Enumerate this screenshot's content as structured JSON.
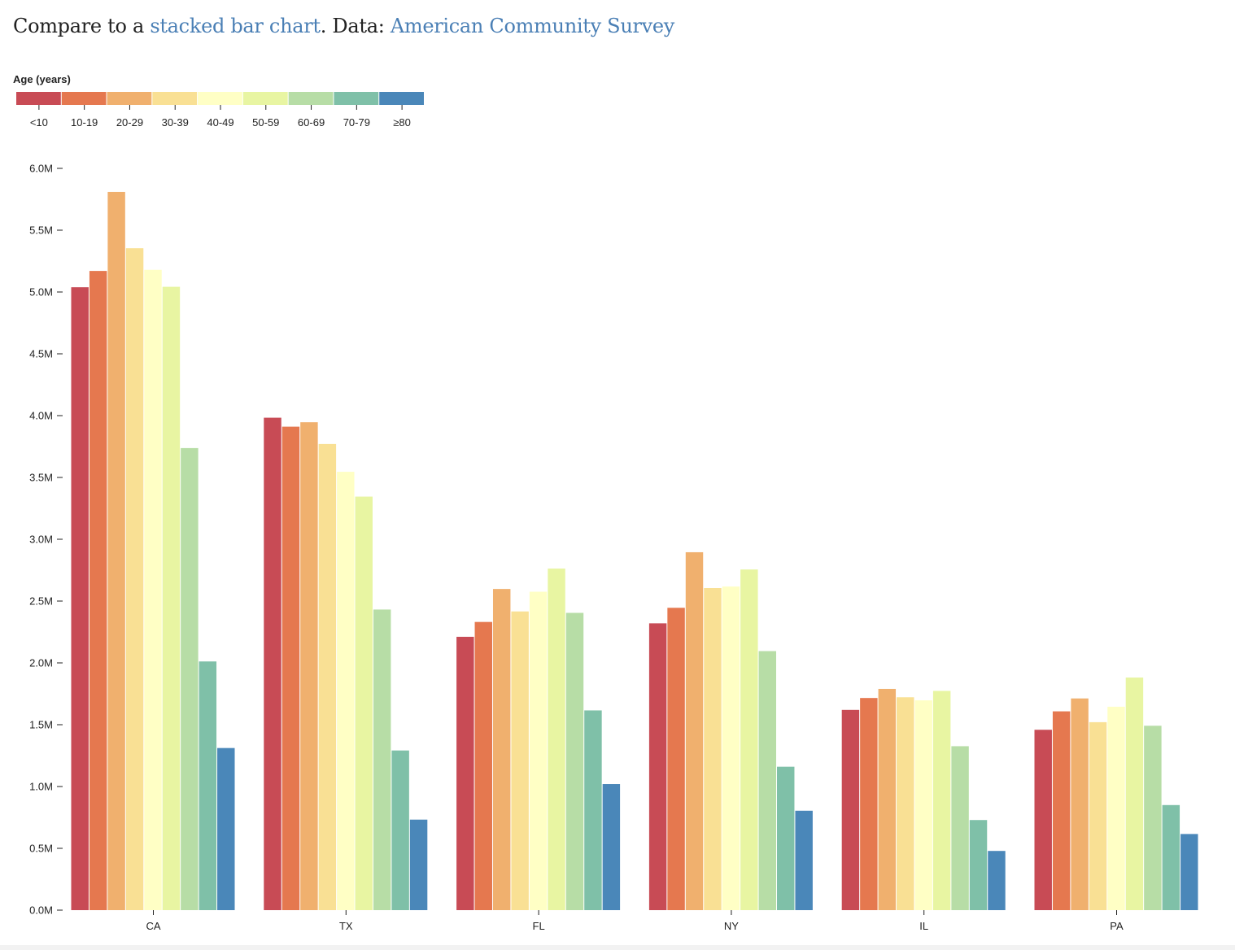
{
  "header": {
    "prefix": "Compare to a ",
    "link1": "stacked bar chart",
    "middle": ". Data: ",
    "link2": "American Community Survey"
  },
  "chart_data": {
    "type": "bar",
    "subtype": "grouped",
    "legend_title": "Age (years)",
    "legend_placement": "top-left",
    "categories": [
      "CA",
      "TX",
      "FL",
      "NY",
      "IL",
      "PA"
    ],
    "ylim": [
      0,
      6000000
    ],
    "yticks": [
      "0.0M",
      "0.5M",
      "1.0M",
      "1.5M",
      "2.0M",
      "2.5M",
      "3.0M",
      "3.5M",
      "4.0M",
      "4.5M",
      "5.0M",
      "5.5M",
      "6.0M"
    ],
    "grid": false,
    "series": [
      {
        "name": "<10",
        "color": "#c84b55",
        "values": [
          5038433,
          3983091,
          2211012,
          2319945,
          1619682,
          1458931
        ]
      },
      {
        "name": "10-19",
        "color": "#e5784f",
        "values": [
          5170341,
          3910528,
          2331102,
          2445591,
          1715984,
          1608018
        ]
      },
      {
        "name": "20-29",
        "color": "#f0b06e",
        "values": [
          5809455,
          3946447,
          2597830,
          2894997,
          1789739,
          1712448
        ]
      },
      {
        "name": "30-39",
        "color": "#f9e094",
        "values": [
          5354112,
          3770534,
          2416176,
          2605355,
          1721954,
          1520409
        ]
      },
      {
        "name": "40-49",
        "color": "#ffffc5",
        "values": [
          5179258,
          3545746,
          2575576,
          2617327,
          1697069,
          1645291
        ]
      },
      {
        "name": "50-59",
        "color": "#e8f5a2",
        "values": [
          5042094,
          3344930,
          2762983,
          2755620,
          1773366,
          1881378
        ]
      },
      {
        "name": "60-69",
        "color": "#b7dda6",
        "values": [
          3737461,
          2431494,
          2404659,
          2095207,
          1326121,
          1491536
        ]
      },
      {
        "name": "70-79",
        "color": "#7fc0a8",
        "values": [
          2011678,
          1291486,
          1615547,
          1160055,
          728821,
          850011
        ]
      },
      {
        "name": "≥80",
        "color": "#4a87b9",
        "values": [
          1311374,
          732179,
          1019566,
          804091,
          478948,
          615934
        ]
      }
    ]
  }
}
